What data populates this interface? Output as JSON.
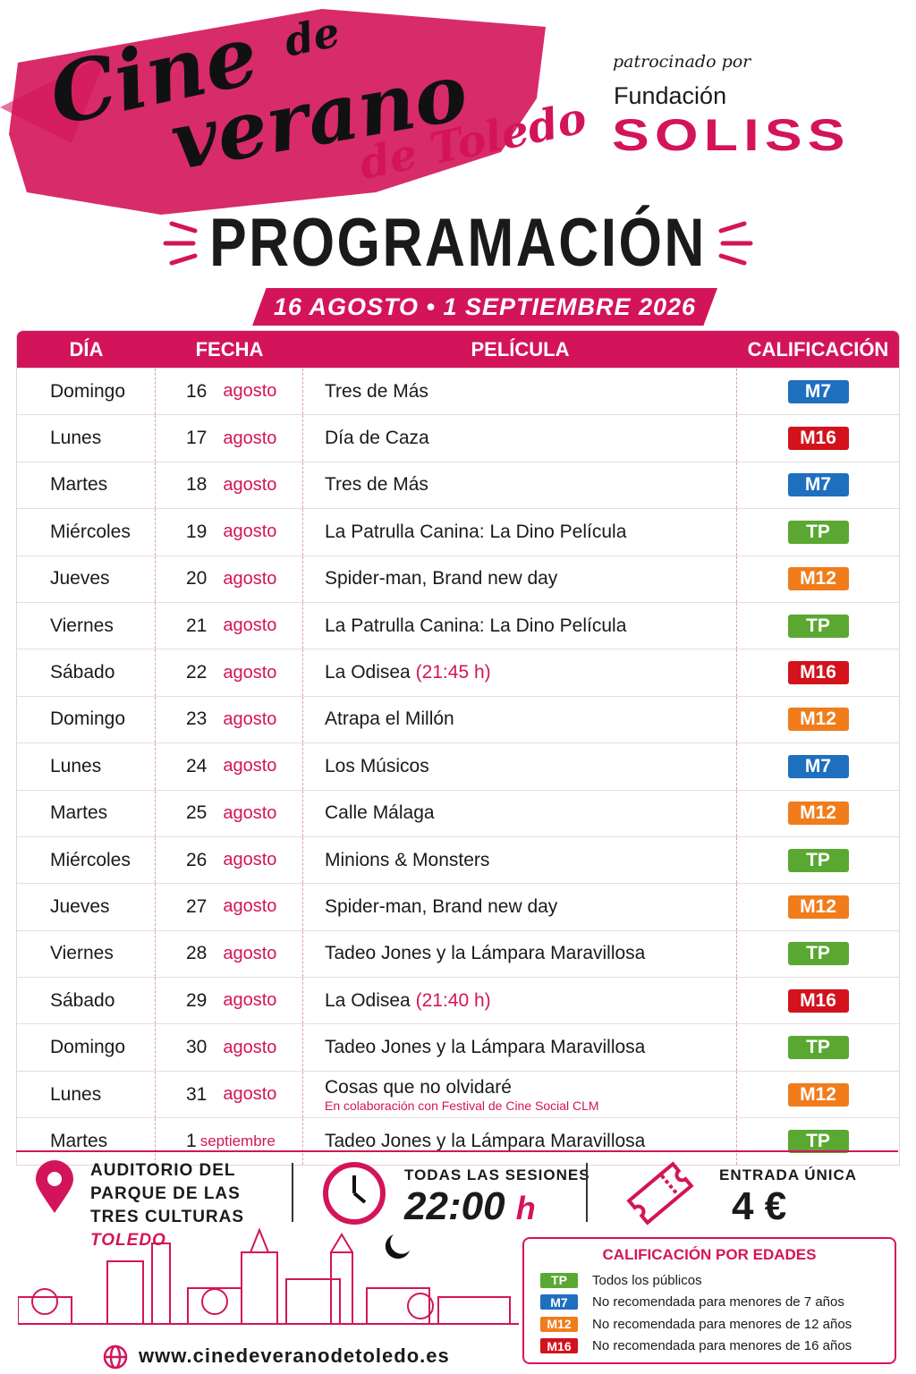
{
  "header": {
    "title_cine": "Cine",
    "title_de": "de",
    "title_verano": "verano",
    "title_toledo": "de Toledo",
    "sponsor_label": "patrocinado por",
    "sponsor_line1": "Fundación",
    "sponsor_line2": "SOLISS"
  },
  "heading": {
    "title": "PROGRAMACIÓN",
    "dates": "16 AGOSTO • 1 SEPTIEMBRE 2026"
  },
  "table": {
    "columns": [
      "DÍA",
      "FECHA",
      "PELÍCULA",
      "CALIFICACIÓN"
    ],
    "rows": [
      {
        "day": "Domingo",
        "num": "16",
        "month": "agosto",
        "film": "Tres de Más",
        "rating": "M7"
      },
      {
        "day": "Lunes",
        "num": "17",
        "month": "agosto",
        "film": "Día de Caza",
        "rating": "M16"
      },
      {
        "day": "Martes",
        "num": "18",
        "month": "agosto",
        "film": "Tres de Más",
        "rating": "M7"
      },
      {
        "day": "Miércoles",
        "num": "19",
        "month": "agosto",
        "film": "La Patrulla Canina: La Dino Película",
        "rating": "TP"
      },
      {
        "day": "Jueves",
        "num": "20",
        "month": "agosto",
        "film": "Spider-man, Brand new day",
        "rating": "M12"
      },
      {
        "day": "Viernes",
        "num": "21",
        "month": "agosto",
        "film": "La Patrulla Canina: La Dino Película",
        "rating": "TP"
      },
      {
        "day": "Sábado",
        "num": "22",
        "month": "agosto",
        "film": "La Odisea",
        "extra": "(21:45 h)",
        "rating": "M16"
      },
      {
        "day": "Domingo",
        "num": "23",
        "month": "agosto",
        "film": "Atrapa el Millón",
        "rating": "M12"
      },
      {
        "day": "Lunes",
        "num": "24",
        "month": "agosto",
        "film": "Los Músicos",
        "rating": "M7"
      },
      {
        "day": "Martes",
        "num": "25",
        "month": "agosto",
        "film": "Calle Málaga",
        "rating": "M12"
      },
      {
        "day": "Miércoles",
        "num": "26",
        "month": "agosto",
        "film": "Minions & Monsters",
        "rating": "TP"
      },
      {
        "day": "Jueves",
        "num": "27",
        "month": "agosto",
        "film": "Spider-man, Brand new day",
        "rating": "M12"
      },
      {
        "day": "Viernes",
        "num": "28",
        "month": "agosto",
        "film": "Tadeo Jones y la Lámpara Maravillosa",
        "rating": "TP"
      },
      {
        "day": "Sábado",
        "num": "29",
        "month": "agosto",
        "film": "La Odisea",
        "extra": "(21:40 h)",
        "rating": "M16"
      },
      {
        "day": "Domingo",
        "num": "30",
        "month": "agosto",
        "film": "Tadeo Jones y la Lámpara Maravillosa",
        "rating": "TP"
      },
      {
        "day": "Lunes",
        "num": "31",
        "month": "agosto",
        "film": "Cosas que no olvidaré",
        "note": "En colaboración con Festival de Cine Social CLM",
        "rating": "M12"
      },
      {
        "day": "Martes",
        "num": "1",
        "month": "septiembre",
        "film": "Tadeo Jones y la Lámpara Maravillosa",
        "rating": "TP"
      }
    ]
  },
  "footer": {
    "location": [
      "AUDITORIO DEL",
      "PARQUE DE LAS",
      "TRES CULTURAS"
    ],
    "city": "TOLEDO",
    "sessions_label": "TODAS LAS SESIONES",
    "sessions_time": "22:00",
    "sessions_unit": "h",
    "ticket_label": "ENTRADA ÚNICA",
    "ticket_price": "4 €",
    "legend_title": "CALIFICACIÓN POR EDADES",
    "ratings": [
      {
        "code": "TP",
        "color": "#5aa832",
        "text": "Todos los públicos"
      },
      {
        "code": "M7",
        "color": "#1f6fbf",
        "text": "No recomendada para menores de 7 años"
      },
      {
        "code": "M12",
        "color": "#f07c1b",
        "text": "No recomendada para menores de 12 años"
      },
      {
        "code": "M16",
        "color": "#d3121c",
        "text": "No recomendada para menores de 16 años"
      }
    ],
    "website": "www.cinedeveranodetoledo.es"
  }
}
